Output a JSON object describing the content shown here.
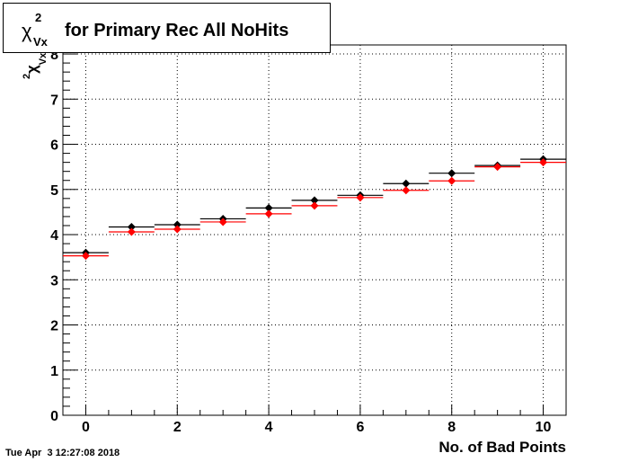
{
  "title": {
    "chi_symbol": "χ",
    "superscript": "2",
    "subscript": "Vx",
    "text": "for Primary Rec All NoHits"
  },
  "timestamp": "Tue Apr  3 12:27:08 2018",
  "chart_data": {
    "type": "scatter",
    "xlabel": "No. of Bad Points",
    "ylabel_symbol": "χ",
    "ylabel_superscript": "2",
    "ylabel_subscript": "Vx",
    "xlim": [
      -0.5,
      10.5
    ],
    "ylim": [
      0,
      8.2
    ],
    "x_ticks": [
      0,
      2,
      4,
      6,
      8,
      10
    ],
    "y_ticks": [
      0,
      1,
      2,
      3,
      4,
      5,
      6,
      7,
      8
    ],
    "grid": true,
    "x": [
      0,
      1,
      2,
      3,
      4,
      5,
      6,
      7,
      8,
      9,
      10
    ],
    "series": [
      {
        "color": "#000000",
        "values": [
          3.6,
          4.17,
          4.22,
          4.35,
          4.59,
          4.76,
          4.87,
          5.13,
          5.36,
          5.53,
          5.67
        ]
      },
      {
        "color": "#ff0000",
        "values": [
          3.53,
          4.06,
          4.12,
          4.28,
          4.46,
          4.64,
          4.82,
          4.98,
          5.19,
          5.5,
          5.6
        ]
      }
    ]
  }
}
